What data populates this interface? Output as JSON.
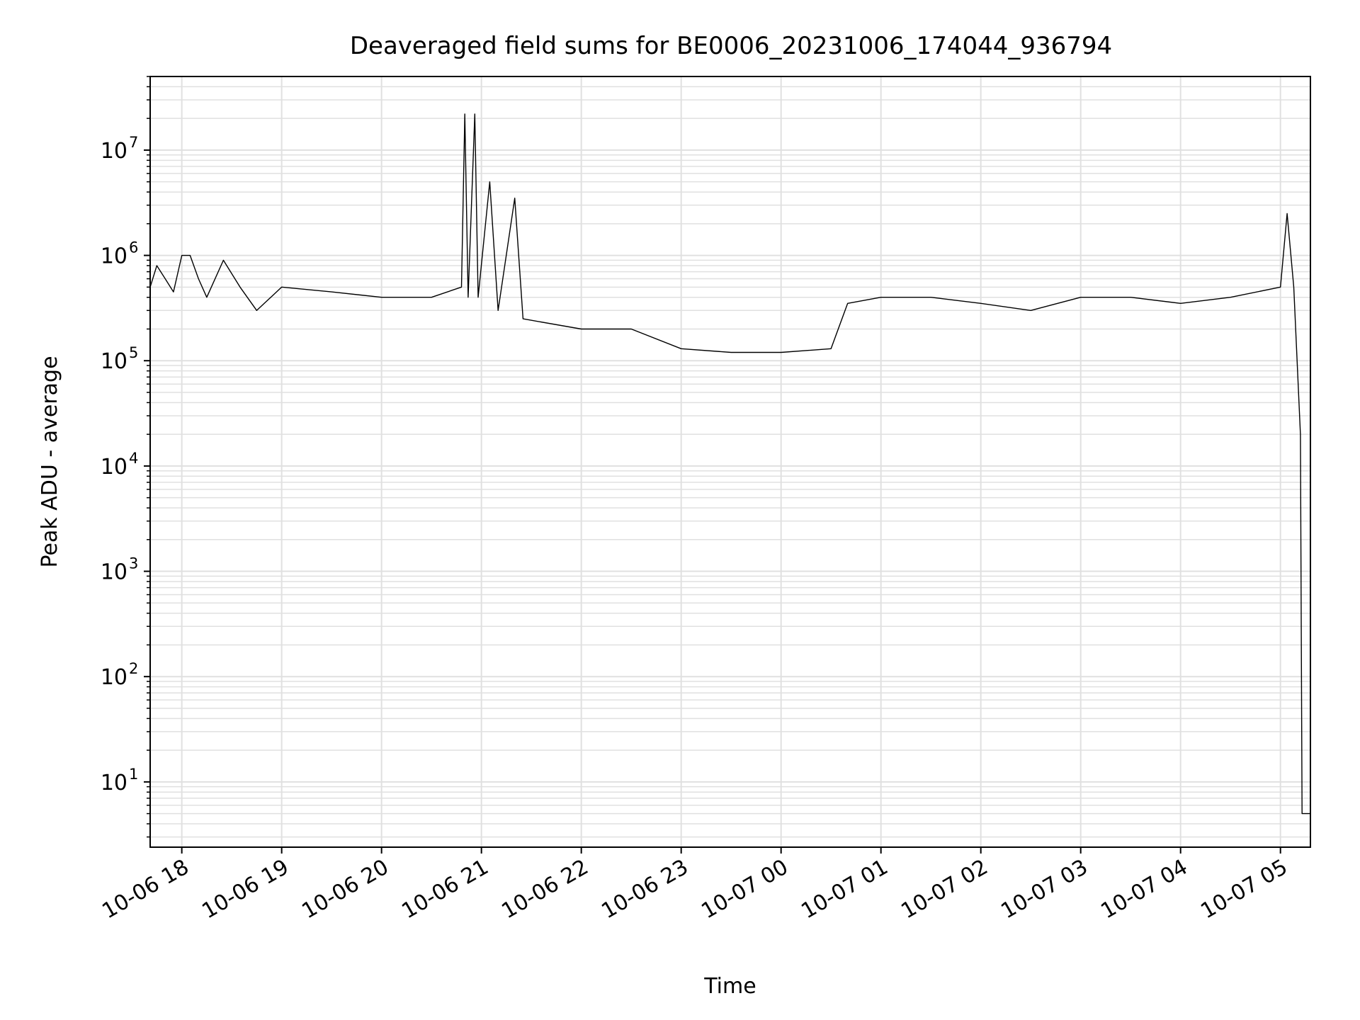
{
  "chart_data": {
    "type": "line",
    "title": "Deaveraged field sums for BE0006_20231006_174044_936794",
    "xlabel": "Time",
    "ylabel": "Peak ADU - average",
    "yscale": "log",
    "grid": true,
    "grid_minor": true,
    "legend": "none",
    "line_color": "#000000",
    "grid_color": "#e0e0e0",
    "xlim": [
      "2023-10-06 17:41",
      "2023-10-07 05:18"
    ],
    "ylim": [
      2.4,
      50000000
    ],
    "x_ticks": [
      {
        "t": "2023-10-06 18:00",
        "label": "10-06 18"
      },
      {
        "t": "2023-10-06 19:00",
        "label": "10-06 19"
      },
      {
        "t": "2023-10-06 20:00",
        "label": "10-06 20"
      },
      {
        "t": "2023-10-06 21:00",
        "label": "10-06 21"
      },
      {
        "t": "2023-10-06 22:00",
        "label": "10-06 22"
      },
      {
        "t": "2023-10-06 23:00",
        "label": "10-06 23"
      },
      {
        "t": "2023-10-07 00:00",
        "label": "10-07 00"
      },
      {
        "t": "2023-10-07 01:00",
        "label": "10-07 01"
      },
      {
        "t": "2023-10-07 02:00",
        "label": "10-07 02"
      },
      {
        "t": "2023-10-07 03:00",
        "label": "10-07 03"
      },
      {
        "t": "2023-10-07 04:00",
        "label": "10-07 04"
      },
      {
        "t": "2023-10-07 05:00",
        "label": "10-07 05"
      }
    ],
    "y_ticks": [
      {
        "value": 10,
        "base": "10",
        "exp": "1"
      },
      {
        "value": 100,
        "base": "10",
        "exp": "2"
      },
      {
        "value": 1000,
        "base": "10",
        "exp": "3"
      },
      {
        "value": 10000,
        "base": "10",
        "exp": "4"
      },
      {
        "value": 100000,
        "base": "10",
        "exp": "5"
      },
      {
        "value": 1000000,
        "base": "10",
        "exp": "6"
      },
      {
        "value": 10000000,
        "base": "10",
        "exp": "7"
      }
    ],
    "series": [
      {
        "points": [
          [
            "2023-10-06 17:41",
            500000
          ],
          [
            "2023-10-06 17:45",
            800000
          ],
          [
            "2023-10-06 17:50",
            600000
          ],
          [
            "2023-10-06 17:55",
            450000
          ],
          [
            "2023-10-06 18:00",
            1000000
          ],
          [
            "2023-10-06 18:05",
            1000000
          ],
          [
            "2023-10-06 18:10",
            600000
          ],
          [
            "2023-10-06 18:15",
            400000
          ],
          [
            "2023-10-06 18:25",
            900000
          ],
          [
            "2023-10-06 18:35",
            500000
          ],
          [
            "2023-10-06 18:45",
            300000
          ],
          [
            "2023-10-06 19:00",
            500000
          ],
          [
            "2023-10-06 19:30",
            450000
          ],
          [
            "2023-10-06 20:00",
            400000
          ],
          [
            "2023-10-06 20:30",
            400000
          ],
          [
            "2023-10-06 20:48",
            500000
          ],
          [
            "2023-10-06 20:50",
            22000000
          ],
          [
            "2023-10-06 20:52",
            400000
          ],
          [
            "2023-10-06 20:54",
            3000000
          ],
          [
            "2023-10-06 20:56",
            22000000
          ],
          [
            "2023-10-06 20:58",
            400000
          ],
          [
            "2023-10-06 21:05",
            5000000
          ],
          [
            "2023-10-06 21:10",
            300000
          ],
          [
            "2023-10-06 21:20",
            3500000
          ],
          [
            "2023-10-06 21:25",
            250000
          ],
          [
            "2023-10-06 22:00",
            200000
          ],
          [
            "2023-10-06 22:30",
            200000
          ],
          [
            "2023-10-06 23:00",
            130000
          ],
          [
            "2023-10-06 23:30",
            120000
          ],
          [
            "2023-10-07 00:00",
            120000
          ],
          [
            "2023-10-07 00:30",
            130000
          ],
          [
            "2023-10-07 00:40",
            350000
          ],
          [
            "2023-10-07 01:00",
            400000
          ],
          [
            "2023-10-07 01:30",
            400000
          ],
          [
            "2023-10-07 02:00",
            350000
          ],
          [
            "2023-10-07 02:30",
            300000
          ],
          [
            "2023-10-07 03:00",
            400000
          ],
          [
            "2023-10-07 03:30",
            400000
          ],
          [
            "2023-10-07 04:00",
            350000
          ],
          [
            "2023-10-07 04:30",
            400000
          ],
          [
            "2023-10-07 05:00",
            500000
          ],
          [
            "2023-10-07 05:04",
            2500000
          ],
          [
            "2023-10-07 05:08",
            500000
          ],
          [
            "2023-10-07 05:10",
            100000
          ],
          [
            "2023-10-07 05:12",
            20000
          ],
          [
            "2023-10-07 05:13",
            5
          ],
          [
            "2023-10-07 05:18",
            5
          ]
        ]
      }
    ]
  }
}
